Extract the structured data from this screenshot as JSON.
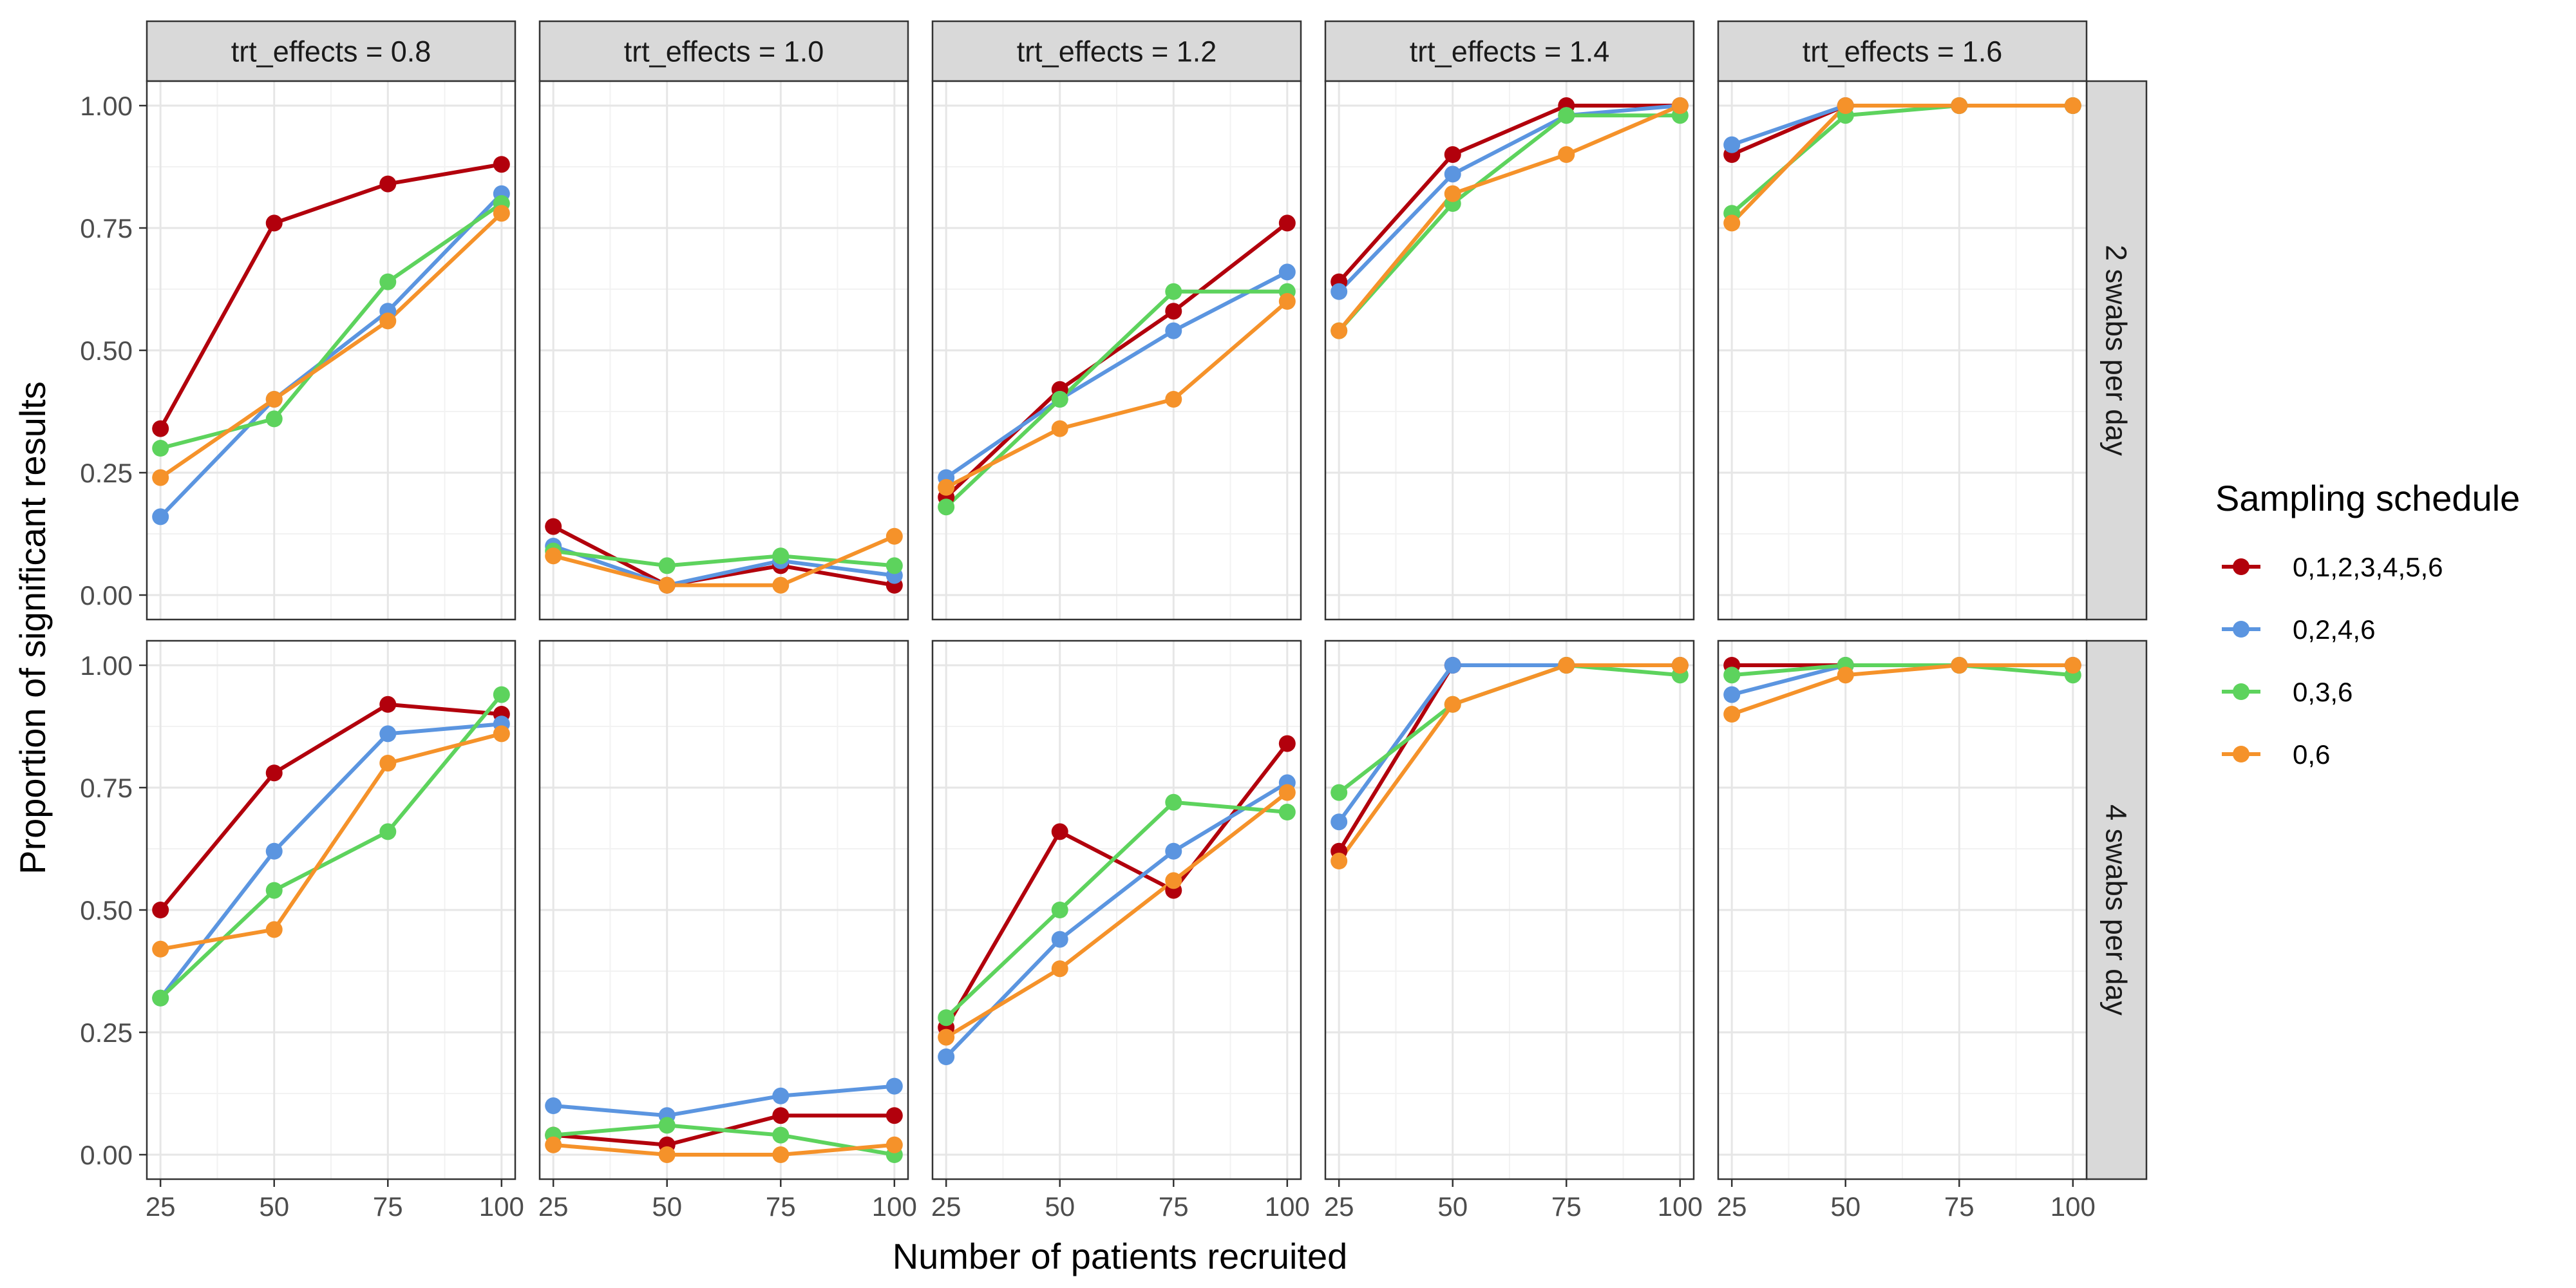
{
  "chart_data": {
    "type": "line",
    "xlabel": "Number of patients recruited",
    "ylabel": "Proportion of significant results",
    "x": [
      25,
      50,
      75,
      100
    ],
    "x_ticks": [
      "25",
      "50",
      "75",
      "100"
    ],
    "y_ticks": [
      "0.00",
      "0.25",
      "0.50",
      "0.75",
      "1.00"
    ],
    "xlim": [
      22,
      103
    ],
    "ylim": [
      -0.05,
      1.05
    ],
    "grid": true,
    "facet_columns": [
      {
        "id": "te08",
        "label": "trt_effects = 0.8"
      },
      {
        "id": "te10",
        "label": "trt_effects = 1.0"
      },
      {
        "id": "te12",
        "label": "trt_effects = 1.2"
      },
      {
        "id": "te14",
        "label": "trt_effects = 1.4"
      },
      {
        "id": "te16",
        "label": "trt_effects = 1.6"
      }
    ],
    "facet_rows": [
      {
        "id": "swabs2",
        "label": "2 swabs per day"
      },
      {
        "id": "swabs4",
        "label": "4 swabs per day"
      }
    ],
    "legend": {
      "title": "Sampling schedule",
      "position": "right",
      "items": [
        {
          "id": "s0123456",
          "label": "0,1,2,3,4,5,6",
          "color": "#B2000C"
        },
        {
          "id": "s0246",
          "label": "0,2,4,6",
          "color": "#5B95E0"
        },
        {
          "id": "s036",
          "label": "0,3,6",
          "color": "#5DD35D"
        },
        {
          "id": "s06",
          "label": "0,6",
          "color": "#F5922A"
        }
      ]
    },
    "panels": [
      {
        "row": "swabs2",
        "col": "te08",
        "series": {
          "s0123456": [
            0.34,
            0.76,
            0.84,
            0.88
          ],
          "s0246": [
            0.16,
            0.4,
            0.58,
            0.82
          ],
          "s036": [
            0.3,
            0.36,
            0.64,
            0.8
          ],
          "s06": [
            0.24,
            0.4,
            0.56,
            0.78
          ]
        }
      },
      {
        "row": "swabs2",
        "col": "te10",
        "series": {
          "s0123456": [
            0.14,
            0.02,
            0.06,
            0.02
          ],
          "s0246": [
            0.1,
            0.02,
            0.07,
            0.04
          ],
          "s036": [
            0.09,
            0.06,
            0.08,
            0.06
          ],
          "s06": [
            0.08,
            0.02,
            0.02,
            0.12
          ]
        }
      },
      {
        "row": "swabs2",
        "col": "te12",
        "series": {
          "s0123456": [
            0.2,
            0.42,
            0.58,
            0.76
          ],
          "s0246": [
            0.24,
            0.4,
            0.54,
            0.66
          ],
          "s036": [
            0.18,
            0.4,
            0.62,
            0.62
          ],
          "s06": [
            0.22,
            0.34,
            0.4,
            0.6
          ]
        }
      },
      {
        "row": "swabs2",
        "col": "te14",
        "series": {
          "s0123456": [
            0.64,
            0.9,
            1.0,
            1.0
          ],
          "s0246": [
            0.62,
            0.86,
            0.98,
            1.0
          ],
          "s036": [
            0.54,
            0.8,
            0.98,
            0.98
          ],
          "s06": [
            0.54,
            0.82,
            0.9,
            1.0
          ]
        }
      },
      {
        "row": "swabs2",
        "col": "te16",
        "series": {
          "s0123456": [
            0.9,
            1.0,
            1.0,
            1.0
          ],
          "s0246": [
            0.92,
            1.0,
            1.0,
            1.0
          ],
          "s036": [
            0.78,
            0.98,
            1.0,
            1.0
          ],
          "s06": [
            0.76,
            1.0,
            1.0,
            1.0
          ]
        }
      },
      {
        "row": "swabs4",
        "col": "te08",
        "series": {
          "s0123456": [
            0.5,
            0.78,
            0.92,
            0.9
          ],
          "s0246": [
            0.32,
            0.62,
            0.86,
            0.88
          ],
          "s036": [
            0.32,
            0.54,
            0.66,
            0.94
          ],
          "s06": [
            0.42,
            0.46,
            0.8,
            0.86
          ]
        }
      },
      {
        "row": "swabs4",
        "col": "te10",
        "series": {
          "s0123456": [
            0.04,
            0.02,
            0.08,
            0.08
          ],
          "s0246": [
            0.1,
            0.08,
            0.12,
            0.14
          ],
          "s036": [
            0.04,
            0.06,
            0.04,
            0.0
          ],
          "s06": [
            0.02,
            0.0,
            0.0,
            0.02
          ]
        }
      },
      {
        "row": "swabs4",
        "col": "te12",
        "series": {
          "s0123456": [
            0.26,
            0.66,
            0.54,
            0.84
          ],
          "s0246": [
            0.2,
            0.44,
            0.62,
            0.76
          ],
          "s036": [
            0.28,
            0.5,
            0.72,
            0.7
          ],
          "s06": [
            0.24,
            0.38,
            0.56,
            0.74
          ]
        }
      },
      {
        "row": "swabs4",
        "col": "te14",
        "series": {
          "s0123456": [
            0.62,
            1.0,
            1.0,
            1.0
          ],
          "s0246": [
            0.68,
            1.0,
            1.0,
            1.0
          ],
          "s036": [
            0.74,
            0.92,
            1.0,
            0.98
          ],
          "s06": [
            0.6,
            0.92,
            1.0,
            1.0
          ]
        }
      },
      {
        "row": "swabs4",
        "col": "te16",
        "series": {
          "s0123456": [
            1.0,
            1.0,
            1.0,
            1.0
          ],
          "s0246": [
            0.94,
            1.0,
            1.0,
            1.0
          ],
          "s036": [
            0.98,
            1.0,
            1.0,
            0.98
          ],
          "s06": [
            0.9,
            0.98,
            1.0,
            1.0
          ]
        }
      }
    ]
  }
}
